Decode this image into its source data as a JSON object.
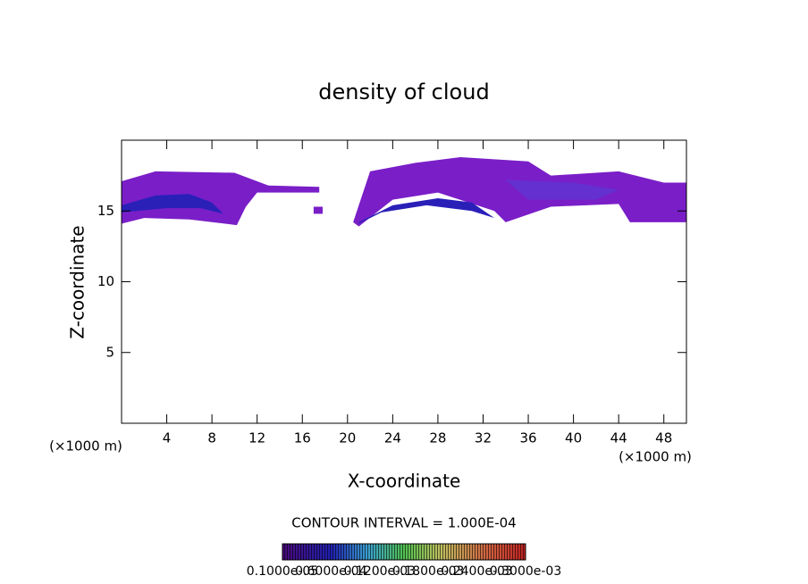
{
  "chart_data": {
    "type": "contour",
    "title": "density of cloud",
    "x_label": "X-coordinate",
    "y_label": "Z-coordinate",
    "x_unit_left": "(×1000 m)",
    "x_unit_right": "(×1000 m)",
    "contour_note": "CONTOUR INTERVAL = 1.000E-04",
    "xlim": [
      0,
      50
    ],
    "ylim": [
      0,
      20
    ],
    "xticks": [
      4,
      8,
      12,
      16,
      20,
      24,
      28,
      32,
      36,
      40,
      44,
      48
    ],
    "yticks": [
      5,
      10,
      15
    ],
    "regions": [
      {
        "color": "#7a1ec8",
        "x": [
          0,
          3,
          10,
          13,
          17.5,
          17.5,
          12,
          11,
          10.2,
          6,
          2,
          0
        ],
        "z": [
          17.1,
          17.8,
          17.7,
          16.8,
          16.7,
          16.3,
          16.3,
          15.3,
          14.0,
          14.4,
          14.5,
          14.1
        ]
      },
      {
        "color": "#7a1ec8",
        "x": [
          17.0,
          17.8,
          17.8,
          17.0
        ],
        "z": [
          15.3,
          15.3,
          14.8,
          14.8
        ]
      },
      {
        "color": "#7a1ec8",
        "x": [
          20.5,
          22,
          26,
          30,
          36,
          38,
          44,
          48,
          50,
          50,
          45,
          44,
          38,
          34,
          33,
          28,
          24,
          21
        ],
        "z": [
          14.2,
          17.8,
          18.4,
          18.8,
          18.5,
          17.5,
          17.8,
          17.0,
          17.0,
          14.2,
          14.2,
          15.5,
          15.3,
          14.2,
          15.0,
          16.3,
          15.8,
          13.9
        ]
      },
      {
        "color": "#6530d0",
        "x": [
          34,
          40,
          44,
          42,
          36
        ],
        "z": [
          17.2,
          17.0,
          16.5,
          15.8,
          15.8
        ]
      },
      {
        "color": "#2a20b8",
        "x": [
          0,
          3,
          6,
          8,
          9,
          7,
          4,
          0
        ],
        "z": [
          15.4,
          16.1,
          16.2,
          15.6,
          14.8,
          15.2,
          15.2,
          14.9
        ]
      },
      {
        "color": "#2a20b8",
        "x": [
          21,
          24,
          28,
          31,
          33,
          31,
          27,
          23,
          21
        ],
        "z": [
          14.2,
          15.4,
          15.9,
          15.6,
          14.5,
          15.0,
          15.4,
          14.9,
          14.1
        ]
      }
    ],
    "colorbar_labels": [
      "0.1000e-05",
      "0.6000e-04",
      "0.1200e-03",
      "0.1800e-03",
      "0.2400e-03",
      "0.3000e-03"
    ]
  }
}
